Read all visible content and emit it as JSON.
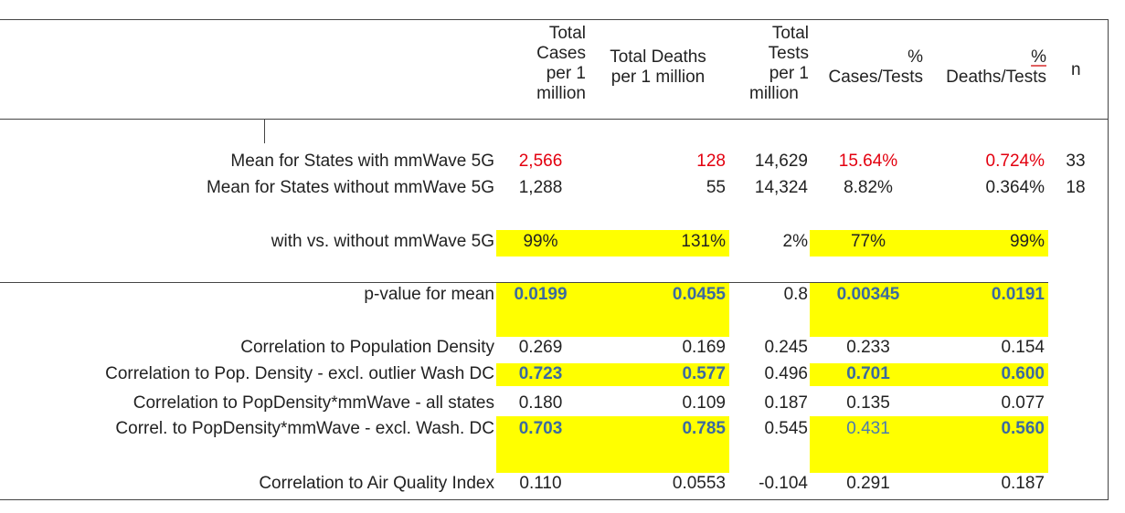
{
  "headers": {
    "total_cases": [
      "Total",
      "Cases",
      "per 1",
      "million"
    ],
    "total_deaths": [
      "Total Deaths",
      "per 1 million"
    ],
    "total_tests": [
      "Total",
      "Tests",
      "per 1",
      "million"
    ],
    "cases_tests": [
      "%",
      "Cases/Tests"
    ],
    "deaths_tests": [
      "%",
      "Deaths/Tests"
    ],
    "n": "n"
  },
  "rows": [
    {
      "label": "Mean for States with mmWave 5G",
      "cases": "2,566",
      "deaths": "128",
      "tests": "14,629",
      "ct": "15.64%",
      "dt": "0.724%",
      "n": "33"
    },
    {
      "label": "Mean for States without mmWave 5G",
      "cases": "1,288",
      "deaths": "55",
      "tests": "14,324",
      "ct": "8.82%",
      "dt": "0.364%",
      "n": "18"
    },
    {
      "label": "with vs. without mmWave 5G",
      "cases": "99%",
      "deaths": "131%",
      "tests": "2%",
      "ct": "77%",
      "dt": "99%"
    },
    {
      "label": "p-value for mean",
      "cases": "0.0199",
      "deaths": "0.0455",
      "tests": "0.8",
      "ct": "0.00345",
      "dt": "0.0191"
    },
    {
      "label": "Correlation to Population Density",
      "cases": "0.269",
      "deaths": "0.169",
      "tests": "0.245",
      "ct": "0.233",
      "dt": "0.154"
    },
    {
      "label": "Correlation to Pop. Density - excl. outlier Wash DC",
      "cases": "0.723",
      "deaths": "0.577",
      "tests": "0.496",
      "ct": "0.701",
      "dt": "0.600"
    },
    {
      "label": "Correlation to PopDensity*mmWave - all states",
      "cases": "0.180",
      "deaths": "0.109",
      "tests": "0.187",
      "ct": "0.135",
      "dt": "0.077"
    },
    {
      "label": "Correl. to PopDensity*mmWave - excl. Wash. DC",
      "cases": "0.703",
      "deaths": "0.785",
      "tests": "0.545",
      "ct": "0.431",
      "dt": "0.560"
    },
    {
      "label": "Correlation to Air Quality Index",
      "cases": "0.110",
      "deaths": "0.0553",
      "tests": "-0.104",
      "ct": "0.291",
      "dt": "0.187"
    }
  ],
  "colors": {
    "highlight": "#ffff00",
    "red": "#e3000f",
    "blue": "#3b6aa0"
  }
}
